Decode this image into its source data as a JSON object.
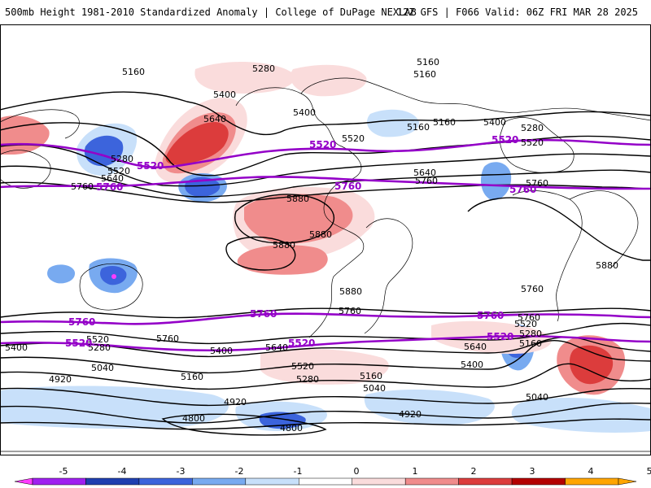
{
  "header": {
    "title_left": "500mb Height 1981-2010 Standardized Anomaly | College of DuPage NEXLAB",
    "title_right": "12Z GFS | F066 Valid: 06Z FRI MAR 28 2025"
  },
  "colorbar": {
    "ticks": [
      "-5",
      "-4",
      "-3",
      "-2",
      "-1",
      "0",
      "1",
      "2",
      "3",
      "4",
      "5"
    ],
    "bins": [
      {
        "range": "-5 to -4",
        "color": "#a020f0"
      },
      {
        "range": "-4 to -3",
        "color": "#1f3fb0"
      },
      {
        "range": "-3 to -2",
        "color": "#3c64dc"
      },
      {
        "range": "-2 to -1",
        "color": "#78aaf0"
      },
      {
        "range": "-1 to 0",
        "color": "#c8e0fa"
      },
      {
        "range": "0 to 1",
        "color": "#ffffff"
      },
      {
        "range": "1 to 2",
        "color": "#fadcdc"
      },
      {
        "range": "2 to 3",
        "color": "#f08c8c"
      },
      {
        "range": "3 to 4",
        "color": "#dc3c3c"
      },
      {
        "range": "4 to 5",
        "color": "#b40000"
      },
      {
        "range": "5+",
        "color": "#ffa500"
      }
    ],
    "low_end_color": "#ff3cff",
    "high_end_color": "#ffa500"
  },
  "contour_labels": {
    "black": [
      "5160",
      "5280",
      "5160",
      "5160",
      "5400",
      "5640",
      "5400",
      "5520",
      "5160",
      "5400",
      "5280",
      "5520",
      "5280",
      "5520",
      "5640",
      "5760",
      "5640",
      "5760",
      "5760",
      "5880",
      "5880",
      "5880",
      "5880",
      "5880",
      "5760",
      "5760",
      "5760",
      "5520",
      "5400",
      "5280",
      "5040",
      "4920",
      "5160",
      "5640",
      "5400",
      "5520",
      "5280",
      "5160",
      "5040",
      "4920",
      "4920",
      "4800",
      "4800",
      "5640",
      "5400",
      "5520",
      "5280",
      "5160",
      "5040",
      "5760",
      "5160"
    ],
    "purple": [
      "5520",
      "5520",
      "5520",
      "5760",
      "5760",
      "5760",
      "5760",
      "5760",
      "5760",
      "5520",
      "5520",
      "5520"
    ]
  }
}
